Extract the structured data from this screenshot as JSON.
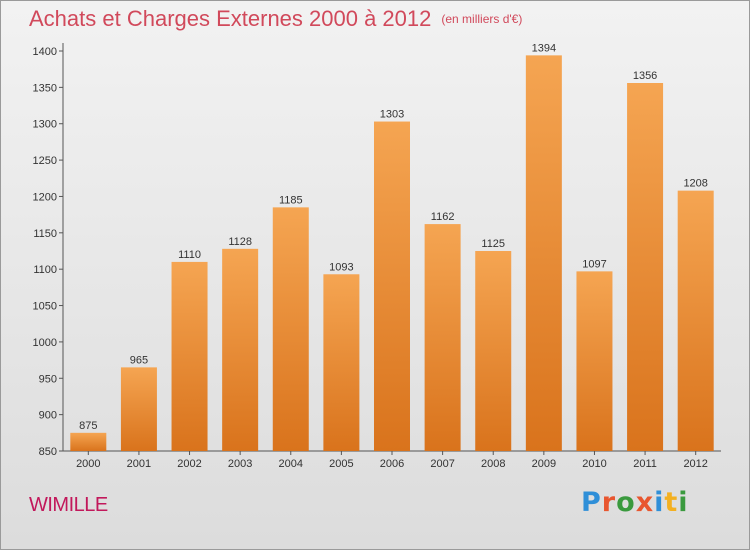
{
  "header": {
    "title": "Achats et Charges Externes 2000 à 2012",
    "subtitle": "(en milliers d'€)"
  },
  "footer": {
    "commune": "WIMILLE",
    "logo_text": "Proxiti"
  },
  "colors": {
    "bar_top": "#f5a552",
    "bar_bottom": "#d9731c",
    "title": "#d1495b",
    "commune": "#c2185b",
    "logo_letters": [
      "#2f8fd8",
      "#e8562f",
      "#3a9a3e",
      "#e8562f",
      "#2f8fd8",
      "#f3b021",
      "#3a9a3e"
    ]
  },
  "chart_data": {
    "type": "bar",
    "title": "Achats et Charges Externes 2000 à 2012",
    "subtitle": "(en milliers d'€)",
    "xlabel": "",
    "ylabel": "",
    "categories": [
      "2000",
      "2001",
      "2002",
      "2003",
      "2004",
      "2005",
      "2006",
      "2007",
      "2008",
      "2009",
      "2010",
      "2011",
      "2012"
    ],
    "values": [
      875,
      965,
      1110,
      1128,
      1185,
      1093,
      1303,
      1162,
      1125,
      1394,
      1097,
      1356,
      1208
    ],
    "ylim": [
      850,
      1400
    ],
    "yticks": [
      850,
      900,
      950,
      1000,
      1050,
      1100,
      1150,
      1200,
      1250,
      1300,
      1350,
      1400
    ],
    "grid": false,
    "legend": "none"
  }
}
